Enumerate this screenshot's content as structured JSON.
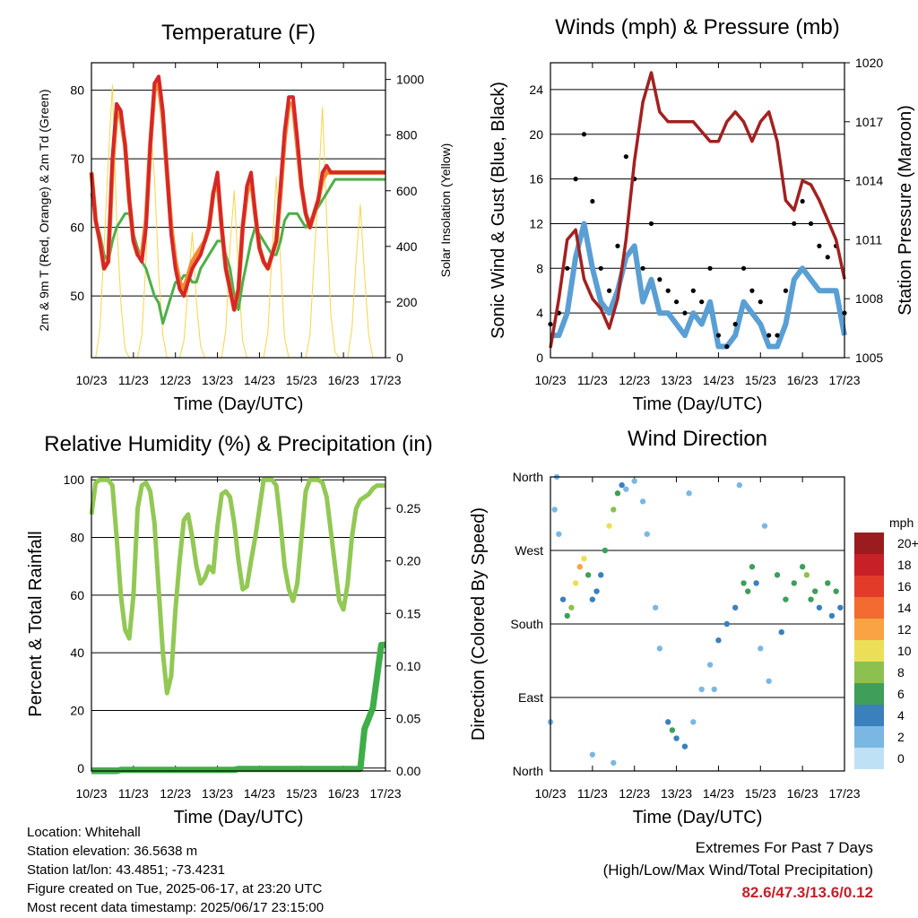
{
  "time_ticks": [
    "10/23",
    "11/23",
    "12/23",
    "13/23",
    "14/23",
    "15/23",
    "16/23",
    "17/23"
  ],
  "xlabel": "Time (Day/UTC)",
  "footer": {
    "location": "Location: Whitehall",
    "elevation": "Station elevation: 36.5638 m",
    "latlon": "Station lat/lon: 43.4851; -73.4231",
    "created": "Figure created on Tue, 2025-06-17, at 23:20 UTC",
    "recent": "Most recent data timestamp: 2025/06/17 23:15:00"
  },
  "extremes": {
    "line1": "Extremes For Past 7 Days",
    "line2": "(High/Low/Max Wind/Total Precipitation)",
    "values": "82.6/47.3/13.6/0.12"
  },
  "colors": {
    "temp_2m": "#d62728",
    "temp_9m": "#f28a30",
    "dewpoint": "#4daf4a",
    "solar": "#f7d54a",
    "gust": "#000000",
    "wind": "#5a9fd4",
    "pressure": "#a32020",
    "rh": "#92c854",
    "precip": "#3fae49"
  },
  "chart_data": [
    {
      "type": "line",
      "title": "Temperature (F)",
      "xlabel": "Time (Day/UTC)",
      "ylabel": "2m & 9m T (Red, Orange) & 2m Td (Green)",
      "y2label": "Solar Insolation (Yellow)",
      "ylim": [
        41,
        84
      ],
      "yticks": [
        50,
        60,
        70,
        80
      ],
      "y2lim": [
        0,
        1060
      ],
      "y2ticks": [
        0,
        200,
        400,
        600,
        800,
        1000
      ],
      "x": [
        0,
        0.1,
        0.2,
        0.3,
        0.4,
        0.5,
        0.6,
        0.7,
        0.8,
        0.9,
        1.0,
        1.1,
        1.2,
        1.3,
        1.4,
        1.5,
        1.6,
        1.7,
        1.8,
        1.9,
        2.0,
        2.1,
        2.2,
        2.3,
        2.4,
        2.5,
        2.6,
        2.7,
        2.8,
        2.9,
        3.0,
        3.1,
        3.2,
        3.3,
        3.4,
        3.5,
        3.6,
        3.7,
        3.8,
        3.9,
        4.0,
        4.1,
        4.2,
        4.3,
        4.4,
        4.5,
        4.6,
        4.7,
        4.8,
        4.9,
        5.0,
        5.1,
        5.2,
        5.3,
        5.4,
        5.5,
        5.6,
        5.7,
        5.8,
        5.9,
        6.0,
        6.1,
        6.2,
        6.3,
        6.4,
        6.5,
        6.6,
        6.7,
        6.8,
        6.9,
        7.0
      ],
      "series": [
        {
          "name": "2m T",
          "axis": "left",
          "values": [
            68,
            61,
            58,
            54,
            55,
            70,
            78,
            77,
            72,
            64,
            58,
            56,
            55,
            60,
            72,
            81,
            82,
            77,
            68,
            59,
            54,
            51,
            50,
            52,
            54,
            55,
            56,
            58,
            60,
            65,
            68,
            60,
            54,
            51,
            48,
            51,
            60,
            66,
            68,
            62,
            57,
            55,
            54,
            56,
            58,
            66,
            74,
            79,
            79,
            73,
            66,
            62,
            60,
            62,
            64,
            68,
            69,
            68,
            68,
            68,
            68,
            68,
            68,
            68,
            68,
            68,
            68,
            68,
            68,
            68,
            68
          ]
        },
        {
          "name": "9m T",
          "axis": "left",
          "values": [
            68,
            61,
            58,
            54,
            55,
            69,
            77,
            76,
            72,
            64,
            58,
            56,
            56,
            61,
            72,
            80,
            81,
            76,
            68,
            60,
            55,
            52,
            51,
            53,
            55,
            56,
            57,
            58,
            60,
            65,
            67,
            60,
            54,
            51,
            48,
            51,
            60,
            65,
            67,
            62,
            57,
            55,
            54,
            56,
            58,
            65,
            73,
            78,
            78,
            72,
            66,
            62,
            60,
            62,
            64,
            67,
            68,
            68,
            68,
            68,
            68,
            68,
            68,
            68,
            68,
            68,
            68,
            68,
            68,
            68,
            68
          ]
        },
        {
          "name": "2m Td",
          "axis": "left",
          "values": [
            65,
            61,
            59,
            56,
            55,
            58,
            60,
            61,
            62,
            62,
            59,
            57,
            55,
            54,
            52,
            50,
            49,
            46,
            48,
            50,
            52,
            52,
            53,
            53,
            52,
            52,
            54,
            55,
            56,
            57,
            58,
            58,
            56,
            54,
            50,
            48,
            52,
            55,
            58,
            60,
            59,
            58,
            57,
            56,
            56,
            58,
            61,
            62,
            62,
            62,
            61,
            60,
            61,
            62,
            63,
            64,
            65,
            66,
            67,
            67,
            67,
            67,
            67,
            67,
            67,
            67,
            67,
            67,
            67,
            67,
            67
          ]
        },
        {
          "name": "Solar",
          "axis": "right",
          "values": [
            0,
            0,
            100,
            400,
            700,
            980,
            500,
            200,
            30,
            0,
            0,
            0,
            80,
            350,
            850,
            650,
            300,
            80,
            0,
            0,
            0,
            0,
            60,
            250,
            450,
            200,
            40,
            0,
            0,
            0,
            0,
            0,
            100,
            400,
            600,
            300,
            60,
            0,
            0,
            0,
            0,
            0,
            90,
            380,
            650,
            350,
            70,
            0,
            0,
            0,
            0,
            0,
            80,
            350,
            600,
            900,
            500,
            150,
            20,
            0,
            0,
            0,
            100,
            350,
            550,
            300,
            80,
            0,
            0,
            0,
            0
          ]
        }
      ]
    },
    {
      "type": "line",
      "title": "Winds (mph) & Pressure (mb)",
      "xlabel": "Time (Day/UTC)",
      "ylabel": "Sonic Wind & Gust (Blue, Black)",
      "y2label": "Station Pressure (Maroon)",
      "ylim": [
        0,
        26.4
      ],
      "yticks": [
        0,
        4,
        8,
        12,
        16,
        20,
        24
      ],
      "y2lim": [
        1005,
        1020
      ],
      "y2ticks": [
        1005,
        1008,
        1011,
        1014,
        1017,
        1020
      ],
      "x": [
        0,
        0.2,
        0.4,
        0.6,
        0.8,
        1.0,
        1.2,
        1.4,
        1.6,
        1.8,
        2.0,
        2.2,
        2.4,
        2.6,
        2.8,
        3.0,
        3.2,
        3.4,
        3.6,
        3.8,
        4.0,
        4.2,
        4.4,
        4.6,
        4.8,
        5.0,
        5.2,
        5.4,
        5.6,
        5.8,
        6.0,
        6.2,
        6.4,
        6.6,
        6.8,
        7.0
      ],
      "series": [
        {
          "name": "Gust",
          "axis": "left",
          "values": [
            3,
            4,
            8,
            16,
            20,
            14,
            8,
            6,
            10,
            18,
            16,
            8,
            12,
            7,
            6,
            5,
            4,
            6,
            5,
            8,
            2,
            1,
            3,
            8,
            6,
            5,
            2,
            2,
            6,
            12,
            14,
            12,
            10,
            9,
            10,
            4
          ]
        },
        {
          "name": "Wind",
          "axis": "left",
          "values": [
            2,
            2,
            4,
            9,
            12,
            8,
            5,
            4,
            6,
            9,
            10,
            5,
            7,
            4,
            4,
            3,
            2,
            4,
            3,
            5,
            1,
            1,
            2,
            5,
            4,
            3,
            1,
            1,
            3,
            7,
            8,
            7,
            6,
            6,
            6,
            2
          ]
        },
        {
          "name": "Pressure",
          "axis": "right",
          "values": [
            1005.5,
            1008,
            1011,
            1011.5,
            1009,
            1008,
            1007.5,
            1006.5,
            1008,
            1011,
            1015,
            1018,
            1019.5,
            1017.5,
            1017,
            1017,
            1017,
            1017,
            1016.5,
            1016,
            1016,
            1017,
            1017.5,
            1017,
            1016,
            1017,
            1017.5,
            1016,
            1013,
            1012.5,
            1014,
            1013.8,
            1013,
            1012,
            1011,
            1009
          ]
        }
      ]
    },
    {
      "type": "line",
      "title": "Relative Humidity (%) & Precipitation (in)",
      "xlabel": "Time (Day/UTC)",
      "ylabel": "Percent & Total Rainfall",
      "ylim": [
        -1,
        101
      ],
      "yticks": [
        0,
        20,
        40,
        60,
        80,
        100
      ],
      "y2lim": [
        0,
        0.28
      ],
      "y2ticks": [
        0.0,
        0.05,
        0.1,
        0.15,
        0.2,
        0.25
      ],
      "x": [
        0,
        0.1,
        0.2,
        0.3,
        0.4,
        0.5,
        0.6,
        0.7,
        0.8,
        0.9,
        1.0,
        1.1,
        1.2,
        1.3,
        1.4,
        1.5,
        1.6,
        1.7,
        1.8,
        1.9,
        2.0,
        2.1,
        2.2,
        2.3,
        2.4,
        2.5,
        2.6,
        2.7,
        2.8,
        2.9,
        3.0,
        3.1,
        3.2,
        3.3,
        3.4,
        3.5,
        3.6,
        3.7,
        3.8,
        3.9,
        4.0,
        4.1,
        4.2,
        4.3,
        4.4,
        4.5,
        4.6,
        4.7,
        4.8,
        4.9,
        5.0,
        5.1,
        5.2,
        5.3,
        5.4,
        5.5,
        5.6,
        5.7,
        5.8,
        5.9,
        6.0,
        6.1,
        6.2,
        6.3,
        6.4,
        6.5,
        6.6,
        6.7,
        6.8,
        6.9,
        7.0
      ],
      "series": [
        {
          "name": "RH",
          "axis": "left",
          "values": [
            88,
            99,
            100,
            100,
            100,
            98,
            80,
            60,
            48,
            45,
            60,
            90,
            98,
            99,
            96,
            85,
            62,
            40,
            26,
            32,
            55,
            72,
            86,
            88,
            80,
            70,
            64,
            66,
            70,
            68,
            84,
            95,
            96,
            94,
            85,
            72,
            62,
            63,
            72,
            80,
            90,
            100,
            100,
            100,
            98,
            85,
            70,
            62,
            58,
            64,
            80,
            96,
            100,
            100,
            100,
            99,
            94,
            82,
            70,
            58,
            55,
            64,
            80,
            90,
            93,
            94,
            95,
            97,
            98,
            98,
            98
          ]
        },
        {
          "name": "Precip",
          "axis": "right",
          "values": [
            0,
            0,
            0,
            0,
            0,
            0,
            0,
            0.001,
            0.001,
            0.001,
            0.001,
            0.001,
            0.001,
            0.001,
            0.001,
            0.001,
            0.001,
            0.001,
            0.001,
            0.001,
            0.001,
            0.001,
            0.001,
            0.001,
            0.001,
            0.001,
            0.001,
            0.001,
            0.001,
            0.001,
            0.001,
            0.001,
            0.001,
            0.001,
            0.001,
            0.002,
            0.002,
            0.002,
            0.002,
            0.002,
            0.002,
            0.002,
            0.002,
            0.002,
            0.002,
            0.002,
            0.002,
            0.002,
            0.002,
            0.002,
            0.002,
            0.002,
            0.002,
            0.002,
            0.002,
            0.002,
            0.002,
            0.002,
            0.002,
            0.002,
            0.002,
            0.002,
            0.002,
            0.002,
            0.002,
            0.04,
            0.05,
            0.06,
            0.09,
            0.12,
            0.12
          ]
        }
      ]
    },
    {
      "type": "scatter",
      "title": "Wind Direction",
      "xlabel": "Time (Day/UTC)",
      "ylabel": "Direction (Colored By Speed)",
      "yticks": [
        "North",
        "East",
        "South",
        "West",
        "North"
      ],
      "ylim": [
        0,
        360
      ],
      "legend_title": "mph",
      "legend_labels": [
        "20+",
        "18",
        "16",
        "14",
        "12",
        "10",
        "8",
        "6",
        "4",
        "2",
        "0"
      ],
      "legend_colors": [
        "#9b1c1f",
        "#c72026",
        "#e23b2a",
        "#f36b30",
        "#f9a345",
        "#ecdf57",
        "#8cc04f",
        "#3f9e5a",
        "#3a80bd",
        "#7ab8e3",
        "#bfe1f5"
      ],
      "legend_position": "right",
      "points": [
        [
          0.1,
          320,
          2
        ],
        [
          0.2,
          290,
          2
        ],
        [
          0.3,
          210,
          3
        ],
        [
          0.4,
          190,
          6
        ],
        [
          0.5,
          200,
          8
        ],
        [
          0.6,
          230,
          10
        ],
        [
          0.7,
          250,
          12
        ],
        [
          0.8,
          260,
          10
        ],
        [
          0.9,
          240,
          6
        ],
        [
          1.0,
          210,
          4
        ],
        [
          1.1,
          220,
          4
        ],
        [
          1.2,
          240,
          4
        ],
        [
          1.3,
          270,
          6
        ],
        [
          1.4,
          300,
          9
        ],
        [
          1.5,
          320,
          8
        ],
        [
          1.6,
          340,
          6
        ],
        [
          1.7,
          350,
          4
        ],
        [
          1.8,
          345,
          2
        ],
        [
          2.0,
          355,
          2
        ],
        [
          2.2,
          330,
          2
        ],
        [
          2.3,
          290,
          2
        ],
        [
          2.5,
          200,
          1
        ],
        [
          2.6,
          150,
          2
        ],
        [
          2.8,
          60,
          4
        ],
        [
          2.9,
          50,
          6
        ],
        [
          3.0,
          40,
          4
        ],
        [
          3.2,
          30,
          3
        ],
        [
          3.4,
          60,
          2
        ],
        [
          3.6,
          100,
          2
        ],
        [
          3.8,
          130,
          2
        ],
        [
          4.0,
          160,
          3
        ],
        [
          4.2,
          180,
          4
        ],
        [
          4.4,
          200,
          4
        ],
        [
          4.6,
          230,
          5
        ],
        [
          4.7,
          220,
          5
        ],
        [
          4.8,
          250,
          6
        ],
        [
          4.9,
          230,
          4
        ],
        [
          5.0,
          150,
          2
        ],
        [
          5.2,
          110,
          2
        ],
        [
          5.4,
          240,
          5
        ],
        [
          5.6,
          210,
          5
        ],
        [
          5.8,
          230,
          6
        ],
        [
          6.0,
          250,
          6
        ],
        [
          6.2,
          210,
          6
        ],
        [
          6.4,
          200,
          4
        ],
        [
          6.6,
          230,
          5
        ],
        [
          6.8,
          220,
          5
        ],
        [
          6.9,
          200,
          4
        ],
        [
          0.0,
          60,
          1
        ],
        [
          0.15,
          360,
          2
        ],
        [
          1.0,
          20,
          2
        ],
        [
          1.5,
          10,
          2
        ],
        [
          3.3,
          340,
          2
        ],
        [
          3.9,
          100,
          1
        ],
        [
          4.5,
          350,
          1
        ],
        [
          5.1,
          300,
          2
        ],
        [
          5.5,
          170,
          3
        ],
        [
          6.1,
          240,
          7
        ],
        [
          6.3,
          220,
          6
        ],
        [
          6.7,
          190,
          4
        ]
      ]
    }
  ]
}
